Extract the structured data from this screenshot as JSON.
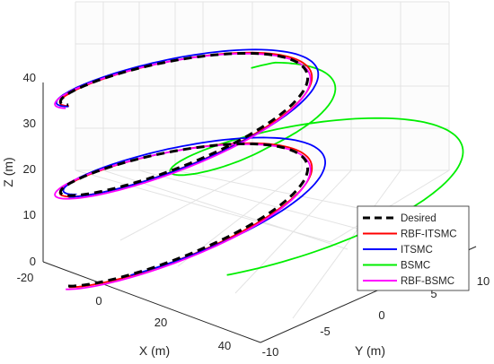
{
  "chart_data": {
    "type": "line",
    "projection": "3d",
    "xlabel": "X (m)",
    "ylabel": "Y (m)",
    "zlabel": "Z (m)",
    "xlim": [
      -20,
      45
    ],
    "ylim": [
      -10,
      10
    ],
    "zlim": [
      0,
      40
    ],
    "xticks": [
      "-20",
      "0",
      "20",
      "40"
    ],
    "yticks": [
      "-10",
      "-5",
      "0",
      "5",
      "10"
    ],
    "zticks": [
      "0",
      "10",
      "20",
      "30",
      "40"
    ],
    "grid": true,
    "legend_position": "bottom-right",
    "series": [
      {
        "name": "Desired",
        "color": "#000000",
        "style": "dashed",
        "description_points": [
          [
            0,
            -10,
            0
          ],
          [
            8.7,
            -5,
            4
          ],
          [
            15,
            5,
            8
          ],
          [
            10,
            10,
            12
          ],
          [
            0,
            10,
            16
          ],
          [
            0,
            -10,
            20
          ],
          [
            8.7,
            -5,
            24
          ],
          [
            15,
            5,
            28
          ],
          [
            10,
            10,
            32
          ],
          [
            0,
            10,
            36
          ],
          [
            0,
            -10,
            40
          ]
        ]
      },
      {
        "name": "RBF-ITSMC",
        "color": "#ff0000",
        "style": "solid"
      },
      {
        "name": "ITSMC",
        "color": "#0000ff",
        "style": "solid"
      },
      {
        "name": "BSMC",
        "color": "#00ee00",
        "style": "solid"
      },
      {
        "name": "RBF-BSMC",
        "color": "#ff00ff",
        "style": "solid"
      }
    ]
  }
}
